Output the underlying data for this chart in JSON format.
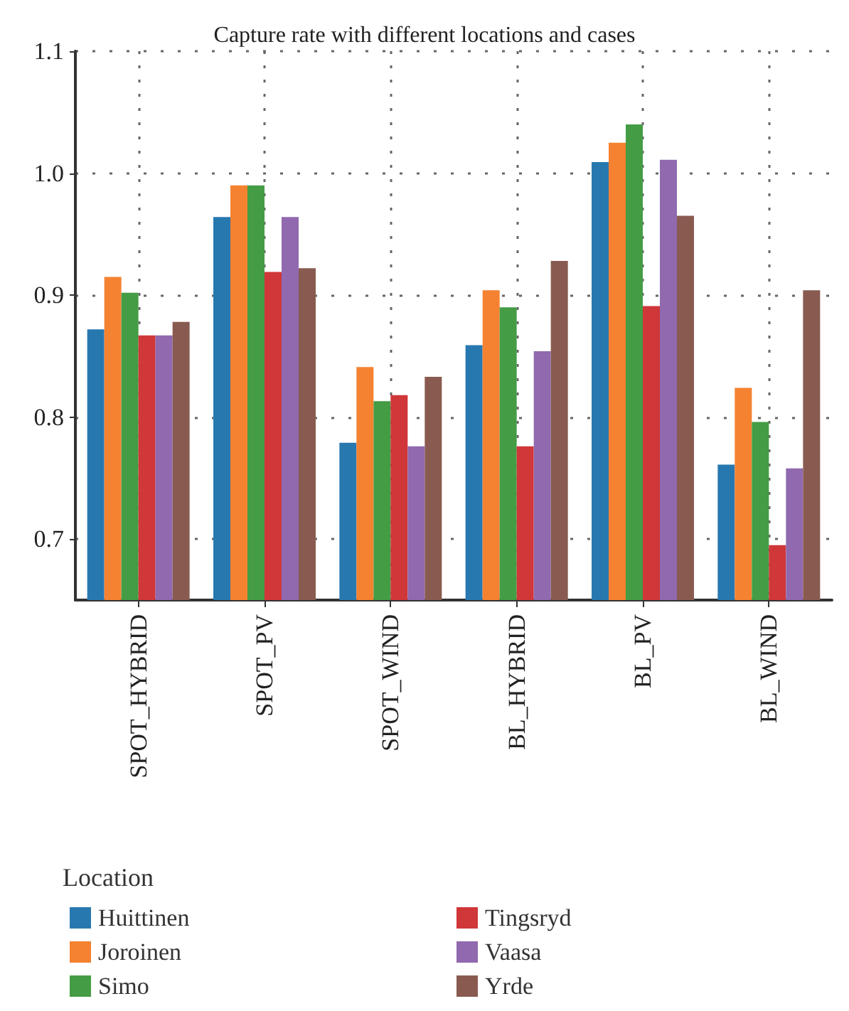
{
  "chart_data": {
    "type": "bar",
    "title": "Capture rate with different locations and cases",
    "legend_title": "Location",
    "categories": [
      "SPOT_HYBRID",
      "SPOT_PV",
      "SPOT_WIND",
      "BL_HYBRID",
      "BL_PV",
      "BL_WIND"
    ],
    "series": [
      {
        "name": "Huittinen",
        "color": "#2878b0",
        "values": [
          0.872,
          0.964,
          0.779,
          0.859,
          1.009,
          0.761
        ]
      },
      {
        "name": "Joroinen",
        "color": "#f58231",
        "values": [
          0.915,
          0.99,
          0.841,
          0.904,
          1.025,
          0.824
        ]
      },
      {
        "name": "Simo",
        "color": "#449c45",
        "values": [
          0.902,
          0.99,
          0.813,
          0.89,
          1.04,
          0.796
        ]
      },
      {
        "name": "Tingsryd",
        "color": "#d03739",
        "values": [
          0.867,
          0.919,
          0.818,
          0.776,
          0.891,
          0.695
        ]
      },
      {
        "name": "Vaasa",
        "color": "#9069af",
        "values": [
          0.867,
          0.964,
          0.776,
          0.854,
          1.011,
          0.758
        ]
      },
      {
        "name": "Yrde",
        "color": "#895b50",
        "values": [
          0.878,
          0.922,
          0.833,
          0.928,
          0.965,
          0.904
        ]
      }
    ],
    "ylim": [
      0.65,
      1.1
    ],
    "yticks": [
      0.7,
      0.8,
      0.9,
      {
        "value": 1.0,
        "label": "1.0"
      },
      1.1
    ],
    "grid": true,
    "legend": "bottom"
  }
}
